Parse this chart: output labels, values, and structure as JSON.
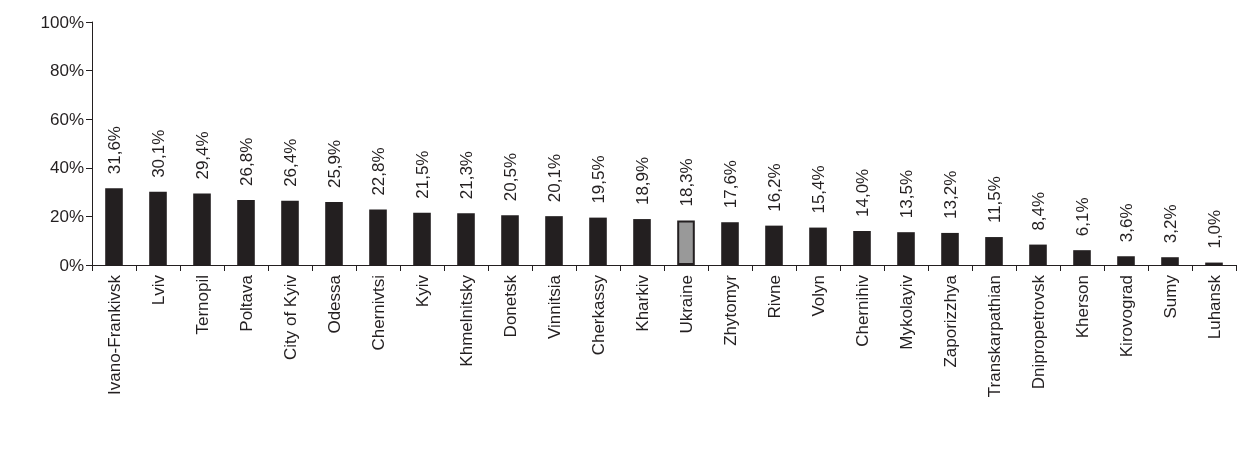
{
  "chart_data": {
    "type": "bar",
    "categories": [
      "Ivano-Frankivsk",
      "Lviv",
      "Ternopil",
      "Poltava",
      "City of Kyiv",
      "Odessa",
      "Chernivtsi",
      "Kyiv",
      "Khmelnitsky",
      "Donetsk",
      "Vinnitsia",
      "Cherkassy",
      "Kharkiv",
      "Ukraine",
      "Zhytomyr",
      "Rivne",
      "Volyn",
      "Chernihiv",
      "Mykolayiv",
      "Zaporizzhya",
      "Transkarpathian",
      "Dnipropetrovsk",
      "Kherson",
      "Kirovograd",
      "Sumy",
      "Luhansk"
    ],
    "values": [
      31.6,
      30.1,
      29.4,
      26.8,
      26.4,
      25.9,
      22.8,
      21.5,
      21.3,
      20.5,
      20.1,
      19.5,
      18.9,
      18.3,
      17.6,
      16.2,
      15.4,
      14.0,
      13.5,
      13.2,
      11.5,
      8.4,
      6.1,
      3.6,
      3.2,
      1.0
    ],
    "value_labels": [
      "31,6%",
      "30,1%",
      "29,4%",
      "26,8%",
      "26,4%",
      "25,9%",
      "22,8%",
      "21,5%",
      "21,3%",
      "20,5%",
      "20,1%",
      "19,5%",
      "18,9%",
      "18,3%",
      "17,6%",
      "16,2%",
      "15,4%",
      "14,0%",
      "13,5%",
      "13,2%",
      "11,5%",
      "8,4%",
      "6,1%",
      "3,6%",
      "3,2%",
      "1,0%"
    ],
    "colors": [
      "#231f20",
      "#231f20",
      "#231f20",
      "#231f20",
      "#231f20",
      "#231f20",
      "#231f20",
      "#231f20",
      "#231f20",
      "#231f20",
      "#231f20",
      "#231f20",
      "#231f20",
      "#999999",
      "#231f20",
      "#231f20",
      "#231f20",
      "#231f20",
      "#231f20",
      "#231f20",
      "#231f20",
      "#231f20",
      "#231f20",
      "#231f20",
      "#231f20",
      "#231f20"
    ],
    "ylim": [
      0,
      100
    ],
    "yticks": [
      {
        "value": 0,
        "label": "0%"
      },
      {
        "value": 20,
        "label": "20%"
      },
      {
        "value": 40,
        "label": "40%"
      },
      {
        "value": 60,
        "label": "60%"
      },
      {
        "value": 80,
        "label": "80%"
      },
      {
        "value": 100,
        "label": "100%"
      }
    ],
    "grid": false
  }
}
